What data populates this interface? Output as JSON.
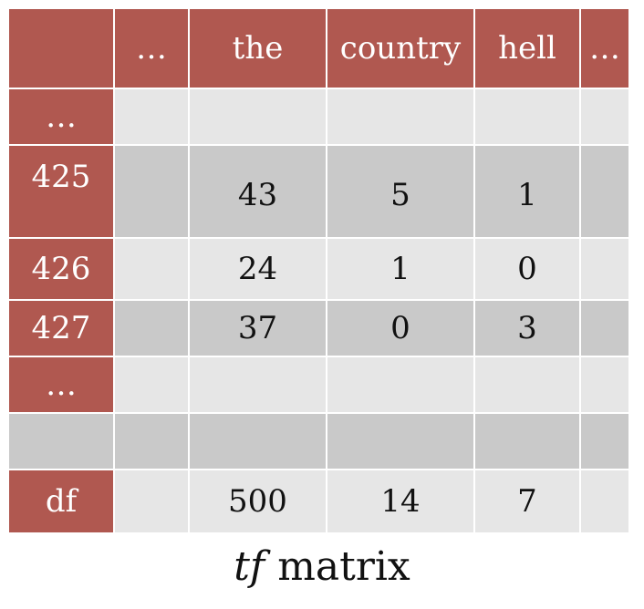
{
  "columns": [
    "…",
    "the",
    "country",
    "hell",
    "…"
  ],
  "rows": [
    {
      "label": "…",
      "cells": [
        "",
        "",
        "",
        "",
        ""
      ]
    },
    {
      "label": "425",
      "cells": [
        "",
        "43",
        "5",
        "1",
        ""
      ]
    },
    {
      "label": "426",
      "cells": [
        "",
        "24",
        "1",
        "0",
        ""
      ]
    },
    {
      "label": "427",
      "cells": [
        "",
        "37",
        "0",
        "3",
        ""
      ]
    },
    {
      "label": "…",
      "cells": [
        "",
        "",
        "",
        "",
        ""
      ]
    },
    {
      "label": "",
      "cells": [
        "",
        "",
        "",
        "",
        ""
      ]
    },
    {
      "label": "df",
      "cells": [
        "",
        "500",
        "14",
        "7",
        ""
      ]
    }
  ],
  "caption": {
    "italic": "tf",
    "rest": " matrix"
  },
  "colors": {
    "header": "#b05850",
    "row_light": "#e6e6e6",
    "row_dark": "#c9c9c9"
  }
}
